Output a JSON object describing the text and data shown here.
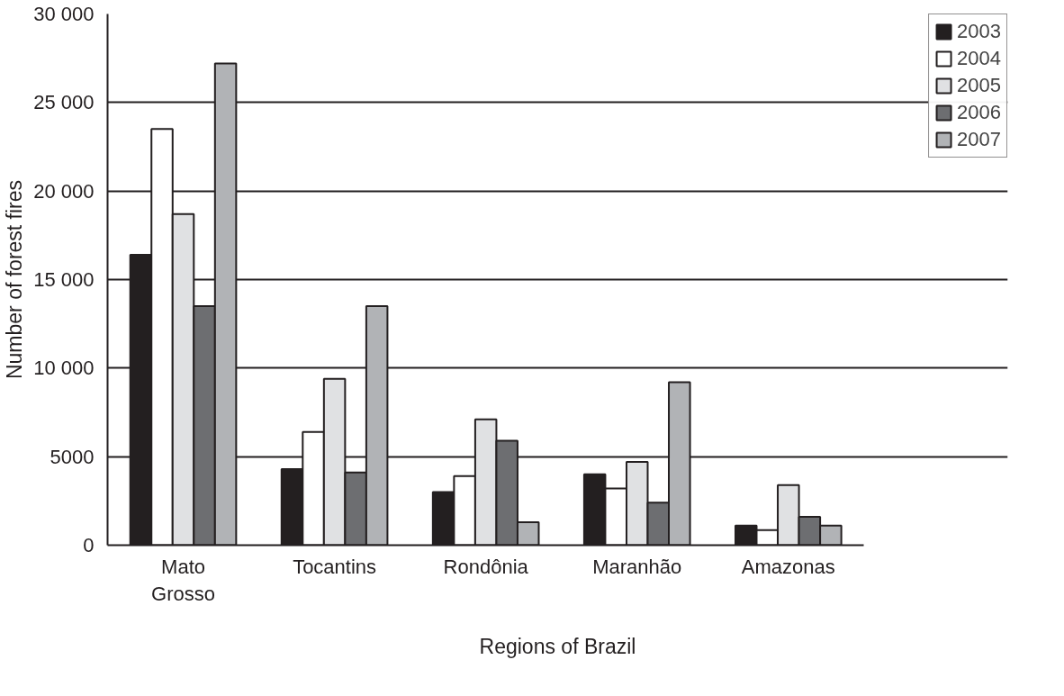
{
  "chart_data": {
    "type": "bar",
    "xlabel": "Regions of Brazil",
    "ylabel": "Number of forest fires",
    "categories": [
      "Mato Grosso",
      "Tocantins",
      "Rondônia",
      "Maranhão",
      "Amazonas"
    ],
    "series": [
      {
        "name": "2003",
        "color": "#231f20",
        "values": [
          16400,
          4300,
          3000,
          4000,
          1100
        ]
      },
      {
        "name": "2004",
        "color": "#ffffff",
        "values": [
          23500,
          6400,
          3900,
          3200,
          850
        ]
      },
      {
        "name": "2005",
        "color": "#e0e1e3",
        "values": [
          18700,
          9400,
          7100,
          4700,
          3400
        ]
      },
      {
        "name": "2006",
        "color": "#6d6e71",
        "values": [
          13500,
          4100,
          5900,
          2400,
          1600
        ]
      },
      {
        "name": "2007",
        "color": "#b1b3b6",
        "values": [
          27200,
          13500,
          1300,
          9200,
          1100
        ]
      }
    ],
    "ylim": [
      0,
      30000
    ],
    "yticks": [
      0,
      {
        "value": 5000,
        "label": "5000"
      },
      {
        "value": 10000,
        "label": "10 000"
      },
      {
        "value": 15000,
        "label": "15 000"
      },
      {
        "value": 20000,
        "label": "20 000"
      },
      {
        "value": 25000,
        "label": "25 000"
      },
      {
        "value": 30000,
        "label": "30 000"
      }
    ],
    "grid": "y",
    "legend": "top right"
  }
}
